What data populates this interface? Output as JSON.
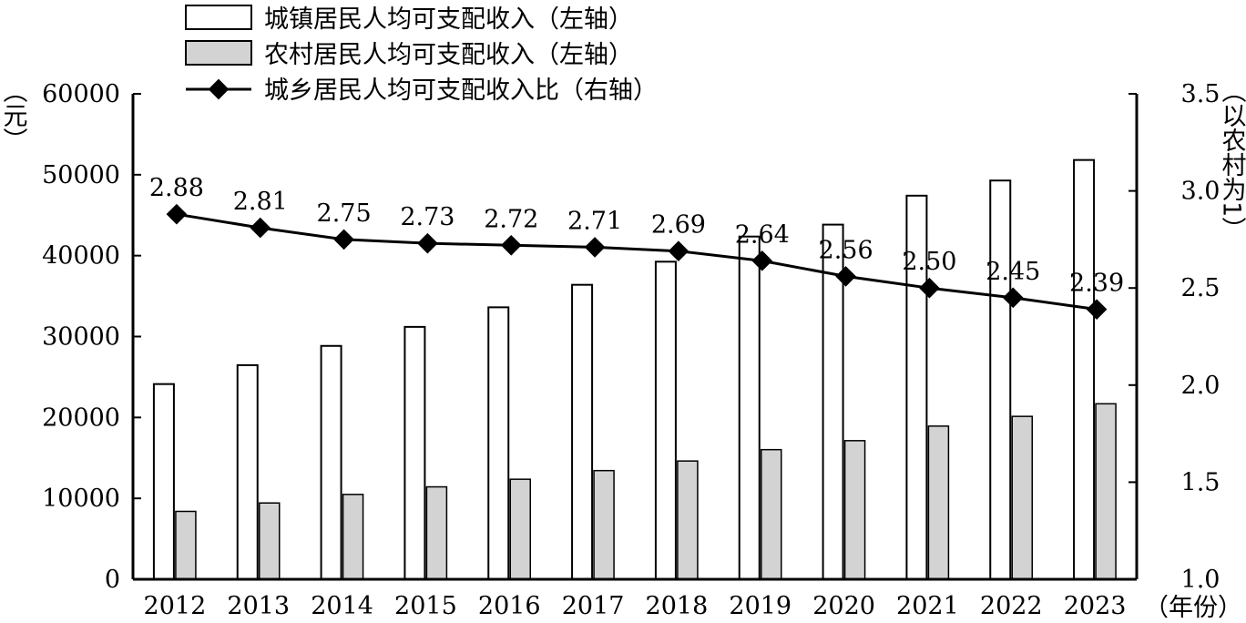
{
  "chart_data": {
    "type": "bar",
    "categories": [
      "2012",
      "2013",
      "2014",
      "2015",
      "2016",
      "2017",
      "2018",
      "2019",
      "2020",
      "2021",
      "2022",
      "2023"
    ],
    "series": [
      {
        "name": "城镇居民人均可支配收入（左轴）",
        "type": "bar",
        "axis": "left",
        "color": "#ffffff",
        "values": [
          24127,
          26467,
          28844,
          31195,
          33616,
          36396,
          39251,
          42359,
          43834,
          47412,
          49283,
          51821
        ]
      },
      {
        "name": "农村居民人均可支配收入（左轴）",
        "type": "bar",
        "axis": "left",
        "color": "#d3d3d3",
        "values": [
          8389,
          9430,
          10489,
          11422,
          12363,
          13432,
          14617,
          16021,
          17131,
          18931,
          20133,
          21691
        ]
      },
      {
        "name": "城乡居民人均可支配收入比（右轴）",
        "type": "line",
        "axis": "right",
        "color": "#000000",
        "marker": "diamond",
        "values": [
          2.88,
          2.81,
          2.75,
          2.73,
          2.72,
          2.71,
          2.69,
          2.64,
          2.56,
          2.5,
          2.45,
          2.39
        ],
        "labels": [
          "2.88",
          "2.81",
          "2.75",
          "2.73",
          "2.72",
          "2.71",
          "2.69",
          "2.64",
          "2.56",
          "2.50",
          "2.45",
          "2.39"
        ]
      }
    ],
    "left_axis": {
      "unit_label": "（元）",
      "range": [
        0,
        60000
      ],
      "ticks": [
        0,
        10000,
        20000,
        30000,
        40000,
        50000,
        60000
      ],
      "tick_labels": [
        "0",
        "10000",
        "20000",
        "30000",
        "40000",
        "50000",
        "60000"
      ]
    },
    "right_axis": {
      "unit_label": "（以农村为1）",
      "range": [
        1.0,
        3.5
      ],
      "ticks": [
        1.0,
        1.5,
        2.0,
        2.5,
        3.0,
        3.5
      ],
      "tick_labels": [
        "1.0",
        "1.5",
        "2.0",
        "2.5",
        "3.0",
        "3.5"
      ]
    },
    "x_axis": {
      "unit_label": "（年份）"
    },
    "legend": {
      "placement": "top-left",
      "entries": [
        "城镇居民人均可支配收入（左轴）",
        "农村居民人均可支配收入（左轴）",
        "城乡居民人均可支配收入比（右轴）"
      ]
    },
    "grid": false
  }
}
